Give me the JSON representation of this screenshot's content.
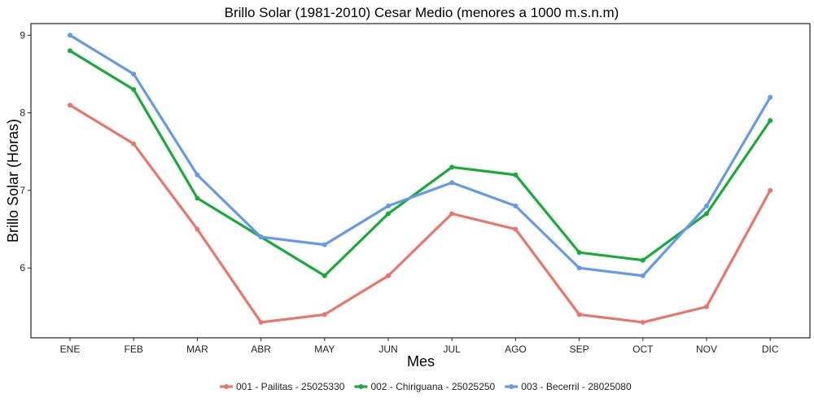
{
  "chart_data": {
    "type": "line",
    "title": "Brillo Solar (1981-2010) Cesar Medio (menores a 1000 m.s.n.m)",
    "xlabel": "Mes",
    "ylabel": "Brillo Solar (Horas)",
    "categories": [
      "ENE",
      "FEB",
      "MAR",
      "ABR",
      "MAY",
      "JUN",
      "JUL",
      "AGO",
      "SEP",
      "OCT",
      "NOV",
      "DIC"
    ],
    "ylim": [
      5.1,
      9.15
    ],
    "yticks": [
      6,
      7,
      8,
      9
    ],
    "grid": false,
    "legend_position": "bottom",
    "series": [
      {
        "name": "001 - Pailitas - 25025330",
        "color": "#e8766b",
        "values": [
          8.1,
          7.6,
          6.5,
          5.3,
          5.4,
          5.9,
          6.7,
          6.5,
          5.4,
          5.3,
          5.5,
          7.0
        ]
      },
      {
        "name": "002 - Chiriguana - 25025250",
        "color": "#1aaa3a",
        "values": [
          8.8,
          8.3,
          6.9,
          6.4,
          5.9,
          6.7,
          7.3,
          7.2,
          6.2,
          6.1,
          6.7,
          7.9
        ]
      },
      {
        "name": "003 - Becerril - 28025080",
        "color": "#6699e8",
        "values": [
          9.0,
          8.5,
          7.2,
          6.4,
          6.3,
          6.8,
          7.1,
          6.8,
          6.0,
          5.9,
          6.8,
          8.2
        ]
      }
    ]
  }
}
